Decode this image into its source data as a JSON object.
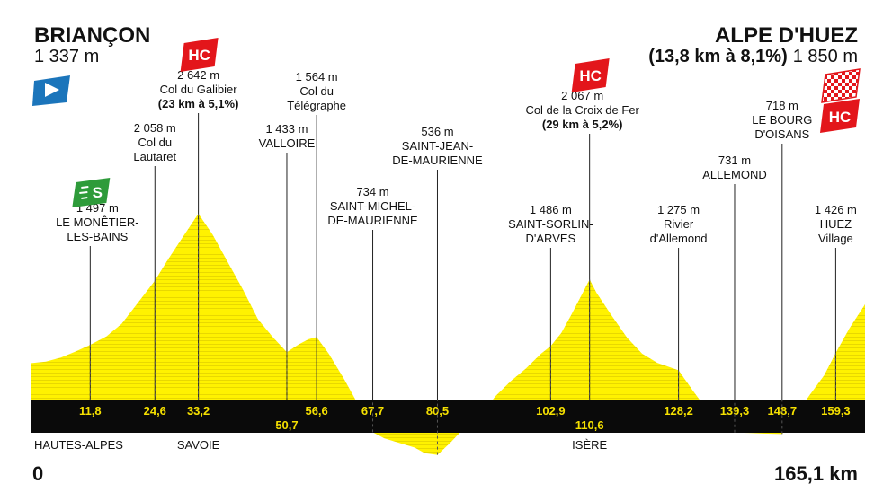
{
  "stage": {
    "start": {
      "name": "BRIANÇON",
      "alt": "1 337 m"
    },
    "finish": {
      "name": "ALPE D'HUEZ",
      "climb": "(13,8 km à 8,1%)",
      "alt": "1 850 m"
    },
    "dist_start": "0",
    "dist_end": "165,1 km",
    "badges": {
      "hc": "HC",
      "sprint": "S"
    }
  },
  "colors": {
    "fill": "#fff200",
    "stripe": "#e8d800",
    "band": "#0a0a0a",
    "kmtext": "#f5e000",
    "hc": "#e3161b",
    "start": "#1b75bb",
    "sprint": "#2e9b3a"
  },
  "chart_data": {
    "type": "area",
    "x_unit": "km",
    "xlim": [
      0,
      165.1
    ],
    "profile": [
      [
        0,
        1337
      ],
      [
        3,
        1350
      ],
      [
        6,
        1385
      ],
      [
        9,
        1440
      ],
      [
        11.8,
        1497
      ],
      [
        15,
        1570
      ],
      [
        18,
        1680
      ],
      [
        21,
        1850
      ],
      [
        24.6,
        2058
      ],
      [
        27,
        2230
      ],
      [
        30,
        2430
      ],
      [
        33.2,
        2642
      ],
      [
        36,
        2460
      ],
      [
        39,
        2220
      ],
      [
        42,
        1980
      ],
      [
        45,
        1720
      ],
      [
        48,
        1560
      ],
      [
        50.7,
        1433
      ],
      [
        53,
        1500
      ],
      [
        55,
        1545
      ],
      [
        56.6,
        1564
      ],
      [
        59,
        1420
      ],
      [
        62,
        1200
      ],
      [
        65,
        960
      ],
      [
        67.7,
        734
      ],
      [
        70,
        680
      ],
      [
        73,
        640
      ],
      [
        76,
        600
      ],
      [
        78,
        550
      ],
      [
        80.5,
        536
      ],
      [
        83,
        640
      ],
      [
        86,
        780
      ],
      [
        89,
        880
      ],
      [
        92,
        1050
      ],
      [
        95,
        1180
      ],
      [
        98,
        1290
      ],
      [
        101,
        1420
      ],
      [
        102.9,
        1486
      ],
      [
        105,
        1600
      ],
      [
        107,
        1760
      ],
      [
        109,
        1930
      ],
      [
        110.6,
        2067
      ],
      [
        112,
        1950
      ],
      [
        115,
        1750
      ],
      [
        118,
        1560
      ],
      [
        121,
        1420
      ],
      [
        124,
        1340
      ],
      [
        128.2,
        1275
      ],
      [
        131,
        1100
      ],
      [
        134,
        920
      ],
      [
        137,
        780
      ],
      [
        139.3,
        731
      ],
      [
        142,
        728
      ],
      [
        145,
        722
      ],
      [
        148.7,
        718
      ],
      [
        151,
        850
      ],
      [
        154,
        1050
      ],
      [
        157,
        1230
      ],
      [
        159.3,
        1426
      ],
      [
        162,
        1640
      ],
      [
        165.1,
        1850
      ]
    ],
    "km_markers": [
      "11,8",
      "24,6",
      "33,2",
      "50,7",
      "56,6",
      "67,7",
      "80,5",
      "102,9",
      "110,6",
      "128,2",
      "139,3",
      "148,7",
      "159,3"
    ],
    "points": [
      {
        "km": 11.8,
        "alt": "1 497 m",
        "names": [
          "LE MONÊTIER-",
          "LES-BAINS"
        ],
        "sprint": true
      },
      {
        "km": 24.6,
        "alt": "2 058 m",
        "names": [
          "Col du",
          "Lautaret"
        ]
      },
      {
        "km": 33.2,
        "alt": "2 642 m",
        "names": [
          "Col du Galibier"
        ],
        "climb": "(23 km à 5,1%)",
        "hc": true
      },
      {
        "km": 50.7,
        "alt": "1 433 m",
        "names": [
          "VALLOIRE"
        ]
      },
      {
        "km": 56.6,
        "alt": "1 564 m",
        "names": [
          "Col du",
          "Télégraphe"
        ]
      },
      {
        "km": 67.7,
        "alt": "734 m",
        "names": [
          "SAINT-MICHEL-",
          "DE-MAURIENNE"
        ]
      },
      {
        "km": 80.5,
        "alt": "536 m",
        "names": [
          "SAINT-JEAN-",
          "DE-MAURIENNE"
        ]
      },
      {
        "km": 102.9,
        "alt": "1 486 m",
        "names": [
          "SAINT-SORLIN-",
          "D'ARVES"
        ]
      },
      {
        "km": 110.6,
        "alt": "2 067 m",
        "names": [
          "Col de la Croix de Fer"
        ],
        "climb": "(29 km à 5,2%)",
        "hc": true
      },
      {
        "km": 128.2,
        "alt": "1 275 m",
        "names": [
          "Rivier",
          "d'Allemond"
        ]
      },
      {
        "km": 139.3,
        "alt": "731 m",
        "names": [
          "ALLEMOND"
        ]
      },
      {
        "km": 148.7,
        "alt": "718 m",
        "names": [
          "LE BOURG",
          "D'OISANS"
        ]
      },
      {
        "km": 159.3,
        "alt": "1 426 m",
        "names": [
          "HUEZ",
          "Village"
        ]
      }
    ],
    "regions": [
      {
        "name": "HAUTES-ALPES",
        "km": 0
      },
      {
        "name": "SAVOIE",
        "km": 33.2
      },
      {
        "name": "ISÈRE",
        "km": 110.6
      }
    ]
  }
}
